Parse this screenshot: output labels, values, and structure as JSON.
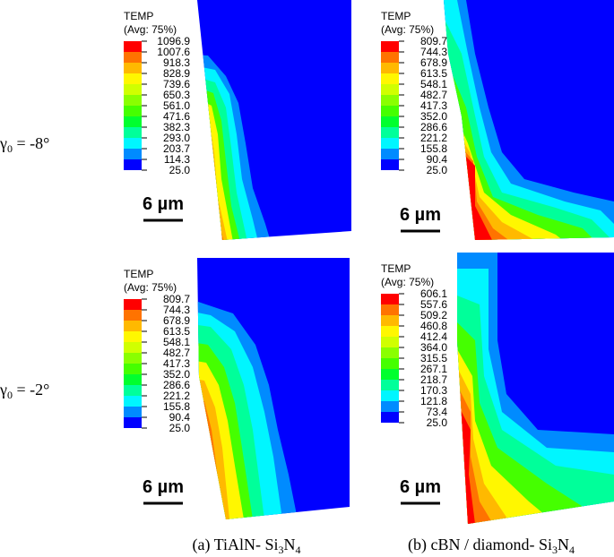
{
  "panels": [
    {
      "legend_title": "TEMP",
      "legend_subtitle": "(Avg: 75%)",
      "values": [
        "1096.9",
        "1007.6",
        "918.3",
        "828.9",
        "739.6",
        "650.3",
        "561.0",
        "471.6",
        "382.3",
        "293.0",
        "203.7",
        "114.3",
        "25.0"
      ],
      "scale_bar": "6 µm"
    },
    {
      "legend_title": "TEMP",
      "legend_subtitle": "(Avg: 75%)",
      "values": [
        "809.7",
        "744.3",
        "678.9",
        "613.5",
        "548.1",
        "482.7",
        "417.3",
        "352.0",
        "286.6",
        "221.2",
        "155.8",
        "90.4",
        "25.0"
      ],
      "scale_bar": "6 µm"
    },
    {
      "legend_title": "TEMP",
      "legend_subtitle": "(Avg: 75%)",
      "values": [
        "809.7",
        "744.3",
        "678.9",
        "613.5",
        "548.1",
        "482.7",
        "417.3",
        "352.0",
        "286.6",
        "221.2",
        "155.8",
        "90.4",
        "25.0"
      ],
      "scale_bar": "6 µm"
    },
    {
      "legend_title": "TEMP",
      "legend_subtitle": "(Avg: 75%)",
      "values": [
        "606.1",
        "557.6",
        "509.2",
        "460.8",
        "412.4",
        "364.0",
        "315.5",
        "267.1",
        "218.7",
        "170.3",
        "121.8",
        "73.4",
        "25.0"
      ],
      "scale_bar": "6 µm"
    }
  ],
  "row_labels": [
    {
      "parts": [
        "γ",
        "0",
        " = -8°"
      ]
    },
    {
      "parts": [
        "γ",
        "0",
        " = -2°"
      ]
    }
  ],
  "captions": [
    {
      "parts": [
        "(a) TiAlN- Si",
        "3",
        "N",
        "4"
      ]
    },
    {
      "parts": [
        "(b) cBN / diamond- Si",
        "3",
        "N",
        "4"
      ]
    }
  ]
}
